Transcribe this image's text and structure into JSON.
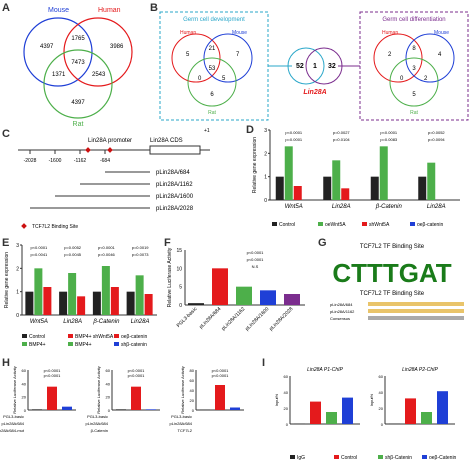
{
  "panels": [
    "A",
    "B",
    "C",
    "D",
    "E",
    "F",
    "G",
    "H",
    "I"
  ],
  "colors": {
    "red": "#e41a1c",
    "green": "#4daf4a",
    "blue": "#1f3fd6",
    "black": "#222222",
    "purple": "#7b2d8e",
    "cyan": "#2aa7c9"
  },
  "venn_a": {
    "sets": [
      "Mouse",
      "Human",
      "Rat"
    ],
    "counts": {
      "mouse_only": "4397",
      "mouse_human": "1765",
      "human_only": "3986",
      "center": "7473",
      "mouse_rat": "1371",
      "human_rat": "2543",
      "rat_only": "4397"
    }
  },
  "venn_b": {
    "left_title": "Germ cell development",
    "right_title": "Germ cell differentiation",
    "left": {
      "human": "Human",
      "mouse": "Mouse",
      "rat": "Rat",
      "h_only": "5",
      "hm": "21",
      "m_only": "7",
      "center": "53",
      "hr": "0",
      "mr": "5",
      "r_only": "6"
    },
    "right": {
      "human": "Human",
      "mouse": "Mouse",
      "rat": "Rat",
      "h_only": "2",
      "hm": "8",
      "m_only": "4",
      "center": "3",
      "hr": "0",
      "mr": "2",
      "r_only": "5"
    },
    "mid": {
      "left": "52",
      "center": "1",
      "right": "32",
      "gene": "Lin28A"
    }
  },
  "diagram_c": {
    "promoter": "Lin28A promoter",
    "cds": "Lin28A CDS",
    "plus1": "+1",
    "ticks": [
      "-2028",
      "-1600",
      "-1162",
      "-684"
    ],
    "constructs": [
      "pLin28A/684",
      "pLin28A/1162",
      "pLin28A/1600",
      "pLin28A/2028"
    ],
    "legend": "TCF7L2 Binding Site"
  },
  "chart_d": {
    "ylabel": "Relative gene expression",
    "categories": [
      "Wnt5A",
      "Lin28A",
      "β-Catenin",
      "Lin28A"
    ],
    "series": [
      {
        "name": "Control",
        "values": [
          1.0,
          1.0,
          1.0,
          1.0
        ]
      },
      {
        "name": "oeWnt5A",
        "values": [
          2.3,
          1.7,
          2.3,
          1.6
        ]
      },
      {
        "name": "shWnt5A",
        "values": [
          0.6,
          0.5,
          null,
          null
        ]
      },
      {
        "name": "oeβ-catenin",
        "values": [
          null,
          null,
          null,
          null
        ]
      }
    ],
    "pvals": [
      "p<0.0001",
      "p=0.0027",
      "p<0.0001",
      "p=0.0052",
      "p=0.0001",
      "p=0.0104",
      "p=0.0083",
      "p=0.0094"
    ],
    "ylim": [
      0,
      3
    ],
    "yticks": [
      "0",
      "1",
      "2",
      "3"
    ],
    "legend": [
      "Control",
      "oeWnt5A",
      "shWnt5A",
      "oeβ-catenin"
    ]
  },
  "chart_e": {
    "ylabel": "Relative gene expression",
    "categories": [
      "Wnt5A",
      "Lin28A",
      "β-Catenin",
      "Lin28A"
    ],
    "series": [
      {
        "name": "Control",
        "values": [
          1.0,
          1.0,
          1.0,
          1.0
        ]
      },
      {
        "name": "BMP4+",
        "values": [
          2.0,
          1.8,
          2.1,
          1.7
        ]
      },
      {
        "name": "BMP4+ shWnt5A",
        "values": [
          1.2,
          0.8,
          1.2,
          0.9
        ]
      }
    ],
    "pvals": [
      "p<0.0001",
      "p=0.0052",
      "p<0.0001",
      "p=0.0019",
      "p=0.0041",
      "p=0.0045",
      "p=0.0046",
      "p=0.0073"
    ],
    "ylim": [
      0,
      3
    ],
    "yticks": [
      "0",
      "1",
      "2",
      "3"
    ],
    "legend": [
      "Control",
      "BMP4+",
      "BMP4+ shWnt5A",
      "BMP4+",
      "oeβ-catenin",
      "shβ-catenin"
    ]
  },
  "chart_f": {
    "ylabel": "Relative Luciferase Activity",
    "categories": [
      "PGL3-basic",
      "pLin28A/684",
      "pLin28A/1162",
      "pLin28A/1600",
      "pLin28A/2028"
    ],
    "values": [
      0.5,
      10,
      5,
      4,
      3
    ],
    "pvals": [
      "p<0.0001",
      "p<0.0001",
      "N.S"
    ],
    "ylim": [
      0,
      15
    ],
    "yticks": [
      "0",
      "5",
      "10",
      "15"
    ]
  },
  "panel_g": {
    "title": "TCF7L2 TF Binding Site",
    "title2": "TCF7L2 TF Binding Site",
    "logo": "CTTTGAT",
    "seq_rows": [
      "pLin28A/684",
      "pLin28A/1162",
      "Consensus"
    ]
  },
  "chart_h": [
    {
      "ylabel": "Relative Luciferase Activity",
      "values": [
        1,
        35,
        5
      ],
      "ylim": [
        0,
        60
      ],
      "yticks": [
        "0",
        "20",
        "40",
        "60"
      ],
      "pvals": [
        "p<0.0001",
        "p<0.0001"
      ]
    },
    {
      "ylabel": "Relative Luciferase Activity",
      "values": [
        1,
        35,
        1
      ],
      "ylim": [
        0,
        60
      ],
      "yticks": [
        "0",
        "20",
        "40",
        "60"
      ],
      "pvals": [
        "p<0.0001",
        "p<0.0001"
      ]
    },
    {
      "ylabel": "Relative Luciferase Activity",
      "values": [
        1,
        50,
        5
      ],
      "ylim": [
        0,
        80
      ],
      "yticks": [
        "0",
        "20",
        "40",
        "60",
        "80"
      ],
      "pvals": [
        "p<0.0001",
        "p<0.0001"
      ]
    }
  ],
  "rows_h": {
    "left": [
      "PGL3-basic",
      "pLin28A/684",
      "pLin28A/684-mut"
    ],
    "mid": [
      "PGL3-basic",
      "pLin28A/684",
      "β-Catenin"
    ],
    "right": [
      "PGL3-basic",
      "pLin28A/684",
      "TCF7L2"
    ]
  },
  "chart_i": [
    {
      "title": "Lin28A P1-ChIP",
      "ylabel": "Input%",
      "values": [
        0.5,
        28,
        15,
        33
      ],
      "ylim": [
        0,
        60
      ],
      "yticks": [
        "0",
        "20",
        "40",
        "60"
      ]
    },
    {
      "title": "Lin28A P2-ChIP",
      "ylabel": "Input%",
      "values": [
        0.5,
        32,
        15,
        41
      ],
      "ylim": [
        0,
        60
      ],
      "yticks": [
        "0",
        "20",
        "40",
        "60"
      ]
    }
  ],
  "legend_i": [
    "IgG",
    "Control",
    "shβ-Catenin",
    "oeβ-Catenin"
  ]
}
